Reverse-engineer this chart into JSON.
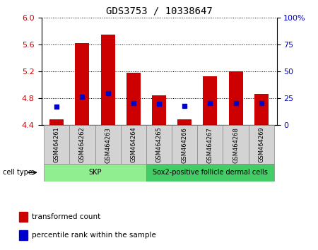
{
  "title": "GDS3753 / 10338647",
  "samples": [
    "GSM464261",
    "GSM464262",
    "GSM464263",
    "GSM464264",
    "GSM464265",
    "GSM464266",
    "GSM464267",
    "GSM464268",
    "GSM464269"
  ],
  "bar_values": [
    4.48,
    5.62,
    5.75,
    5.18,
    4.84,
    4.48,
    5.13,
    5.2,
    4.86
  ],
  "bar_base": 4.4,
  "percentile_values": [
    4.67,
    4.82,
    4.87,
    4.73,
    4.72,
    4.68,
    4.73,
    4.73,
    4.73
  ],
  "bar_color": "#cc0000",
  "percentile_color": "#0000cc",
  "ylim_left": [
    4.4,
    6.0
  ],
  "yticks_left": [
    4.4,
    4.8,
    5.2,
    5.6,
    6.0
  ],
  "ylim_right": [
    0,
    100
  ],
  "yticks_right": [
    0,
    25,
    50,
    75,
    100
  ],
  "ytick_labels_right": [
    "0",
    "25",
    "50",
    "75",
    "100%"
  ],
  "grid_color": "#000000",
  "cell_type_groups": [
    {
      "label": "SKP",
      "samples": [
        0,
        1,
        2,
        3
      ],
      "color": "#90ee90"
    },
    {
      "label": "Sox2-positive follicle dermal cells",
      "samples": [
        4,
        5,
        6,
        7,
        8
      ],
      "color": "#44cc66"
    }
  ],
  "cell_type_label": "cell type",
  "legend_items": [
    {
      "label": "transformed count",
      "color": "#cc0000"
    },
    {
      "label": "percentile rank within the sample",
      "color": "#0000cc"
    }
  ],
  "bar_width": 0.55,
  "xlabel_color": "#cc0000",
  "ylabel_right_color": "#0000cc",
  "bg_color": "#ffffff",
  "tick_label_bg": "#d3d3d3"
}
